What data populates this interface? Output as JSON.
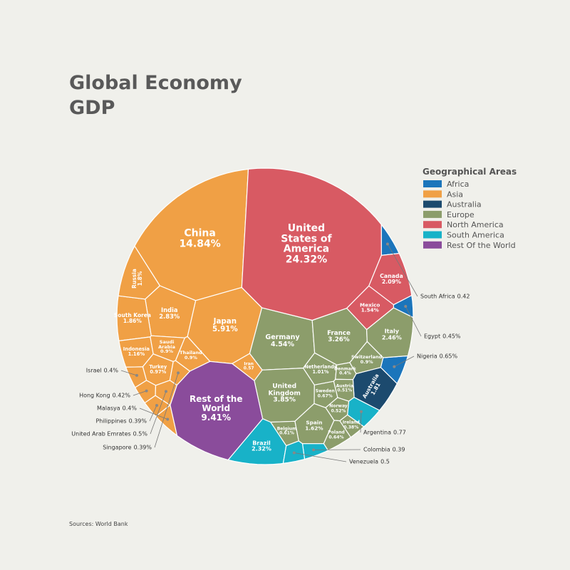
{
  "chart_data": {
    "type": "voronoi",
    "title": [
      "Global Economy",
      "GDP"
    ],
    "legend_title": "Geographical Areas",
    "source": "Sources: World Bank",
    "series": [
      {
        "name": "Africa",
        "color": "#1b75bb",
        "categories": [
          "South Africa",
          "Egypt",
          "Nigeria"
        ],
        "values": [
          0.42,
          0.45,
          0.65
        ],
        "value_labels": [
          "0.42",
          "0.45%",
          "0.65%"
        ]
      },
      {
        "name": "Asia",
        "color": "#f0a045",
        "categories": [
          "China",
          "Japan",
          "India",
          "South Korea",
          "Russia",
          "Indonesia",
          "Turkey",
          "Saudi Arabia",
          "Thailand",
          "Iran",
          "Israel",
          "Hong Kong",
          "Malasya",
          "Philippines",
          "United Arab Emrates",
          "Singapore"
        ],
        "values": [
          14.84,
          5.91,
          2.83,
          1.86,
          1.8,
          1.16,
          0.97,
          0.9,
          0.9,
          0.57,
          0.4,
          0.42,
          0.4,
          0.39,
          0.5,
          0.39
        ],
        "value_labels": [
          "14.84%",
          "5.91%",
          "2.83%",
          "1.86%",
          "1.8%",
          "1.16%",
          "0.97%",
          "0.9%",
          "0.9%",
          "0.57",
          "0.4%",
          "0.42%",
          "0.4%",
          "0.39%",
          "0.5%",
          "0.39%"
        ]
      },
      {
        "name": "Australia",
        "color": "#1c4a6e",
        "categories": [
          "Australia"
        ],
        "values": [
          1.81
        ],
        "value_labels": [
          "1.81"
        ]
      },
      {
        "name": "Europe",
        "color": "#8c9d6b",
        "categories": [
          "Germany",
          "United Kingdom",
          "France",
          "Italy",
          "Netherlands",
          "Spain",
          "Sweden",
          "Norway",
          "Poland",
          "Switzerland",
          "Denmark",
          "Belgium",
          "Ireland",
          "Austria"
        ],
        "values": [
          4.54,
          3.85,
          3.26,
          2.46,
          1.01,
          1.62,
          0.67,
          0.52,
          0.64,
          0.9,
          0.4,
          0.61,
          0.38,
          0.51
        ],
        "value_labels": [
          "4.54%",
          "3.85%",
          "3.26%",
          "2.46%",
          "1.01%",
          "1.62%",
          "0.67%",
          "0.52%",
          "0.64%",
          "0.9%",
          "0.4%",
          "0.61%",
          "0.38%",
          "0.51%"
        ]
      },
      {
        "name": "North America",
        "color": "#d85a63",
        "categories": [
          "United States of America",
          "Canada",
          "Mexico"
        ],
        "values": [
          24.32,
          2.09,
          1.54
        ],
        "value_labels": [
          "24.32%",
          "2.09%",
          "1.54%"
        ]
      },
      {
        "name": "South America",
        "color": "#18b2c8",
        "categories": [
          "Brazil",
          "Argentina",
          "Colombia",
          "Venezuela"
        ],
        "values": [
          2.32,
          0.77,
          0.39,
          0.5
        ],
        "value_labels": [
          "2.32%",
          "0.77",
          "0.39",
          "0.5"
        ]
      },
      {
        "name": "Rest Of the World",
        "color": "#8a4c9b",
        "categories": [
          "Rest of the World"
        ],
        "values": [
          9.41
        ],
        "value_labels": [
          "9.41%"
        ]
      }
    ]
  }
}
